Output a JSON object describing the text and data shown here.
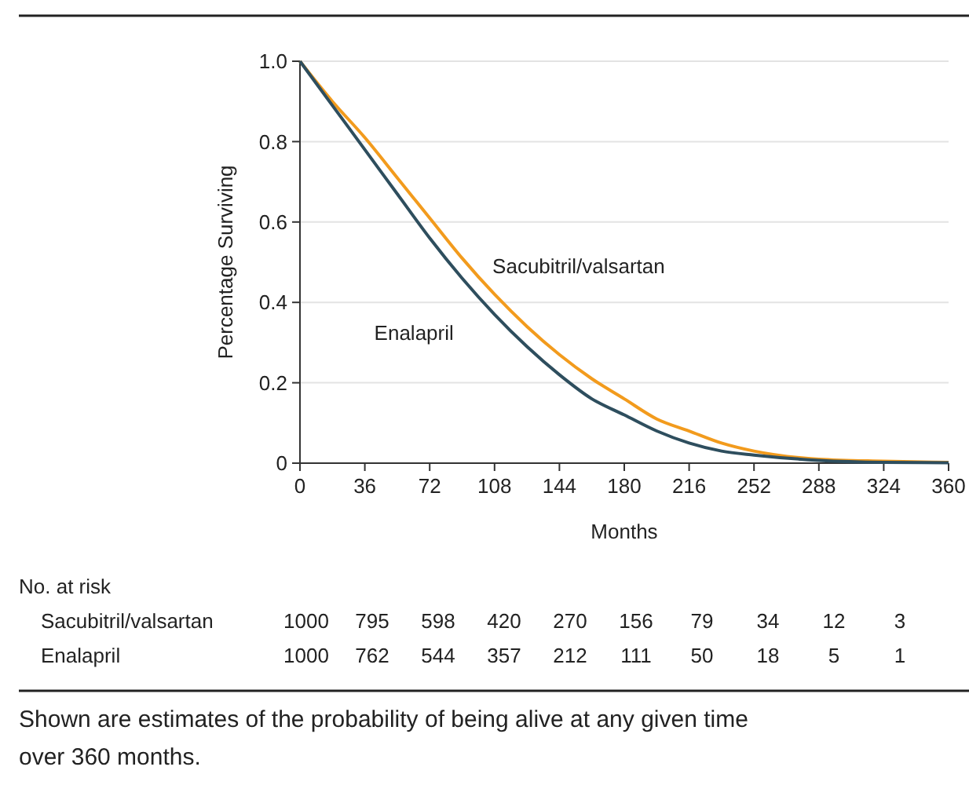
{
  "chart_data": {
    "type": "line",
    "xlabel": "Months",
    "ylabel": "Percentage Surviving",
    "x": [
      0,
      18,
      36,
      54,
      72,
      90,
      108,
      126,
      144,
      162,
      180,
      198,
      216,
      234,
      252,
      288,
      324,
      360
    ],
    "series": [
      {
        "name": "Sacubitril/valsartan",
        "color": "#f29b1d",
        "values": [
          1,
          0.9,
          0.81,
          0.71,
          0.61,
          0.51,
          0.42,
          0.34,
          0.27,
          0.21,
          0.16,
          0.11,
          0.08,
          0.05,
          0.03,
          0.01,
          0.005,
          0.002
        ]
      },
      {
        "name": "Enalapril",
        "color": "#2e4e5e",
        "values": [
          1,
          0.89,
          0.78,
          0.67,
          0.56,
          0.46,
          0.37,
          0.29,
          0.22,
          0.16,
          0.12,
          0.08,
          0.05,
          0.03,
          0.02,
          0.007,
          0.002,
          0.001
        ]
      }
    ],
    "xlim": [
      0,
      360
    ],
    "xticks": [
      0,
      36,
      72,
      108,
      144,
      180,
      216,
      252,
      288,
      324,
      360
    ],
    "ylim": [
      0,
      1
    ],
    "yticks": [
      0,
      {
        "value": 0.2,
        "label": "0.2"
      },
      {
        "value": 0.4,
        "label": "0.4"
      },
      {
        "value": 0.6,
        "label": "0.6"
      },
      {
        "value": 0.8,
        "label": "0.8"
      },
      {
        "value": 1,
        "label": "1.0"
      }
    ],
    "grid": "y",
    "marker": "none",
    "line_style": "solid",
    "annotations": [
      "No. at risk",
      "Sacubitril/valsartan 1000 795 598 420 270 156 79 34 12 3",
      "Enalapril 1000 762 544 357 212 111 50 18 5 1",
      "Shown are estimates of the probability of being alive at any given time over 360 months."
    ]
  }
}
